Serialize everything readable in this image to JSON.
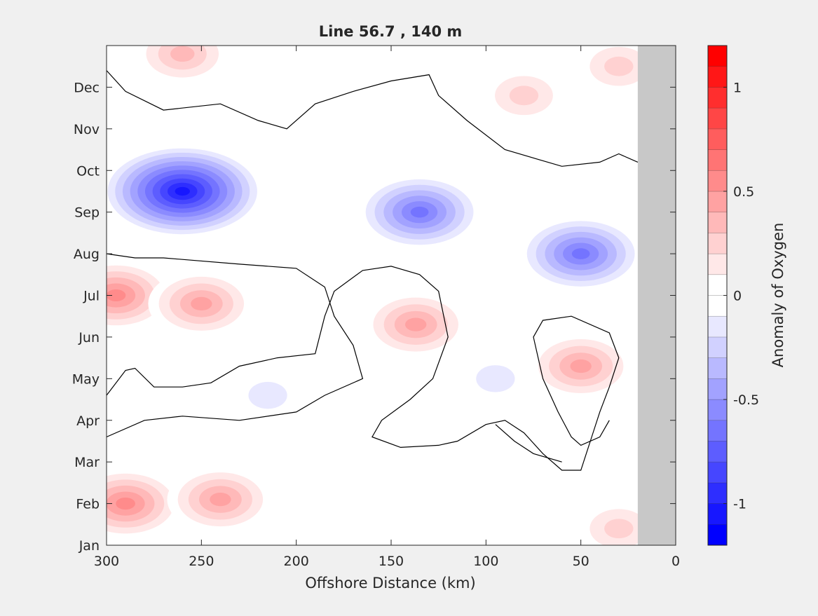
{
  "chart_data": {
    "type": "heatmap",
    "title": "Line 56.7 , 140 m",
    "xlabel": "Offshore Distance (km)",
    "ylabel": "",
    "x_reversed": true,
    "xlim": [
      300,
      0
    ],
    "x_ticks": [
      300,
      250,
      200,
      150,
      100,
      50,
      0
    ],
    "y_ticks": [
      {
        "label": "Jan",
        "month": 1
      },
      {
        "label": "Feb",
        "month": 2
      },
      {
        "label": "Mar",
        "month": 3
      },
      {
        "label": "Apr",
        "month": 4
      },
      {
        "label": "May",
        "month": 5
      },
      {
        "label": "Jun",
        "month": 6
      },
      {
        "label": "Jul",
        "month": 7
      },
      {
        "label": "Aug",
        "month": 8
      },
      {
        "label": "Sep",
        "month": 9
      },
      {
        "label": "Oct",
        "month": 10
      },
      {
        "label": "Nov",
        "month": 11
      },
      {
        "label": "Dec",
        "month": 12
      }
    ],
    "ylim": [
      1,
      13
    ],
    "no_data_region_km": [
      0,
      20
    ],
    "contour_level": 0,
    "colorbar": {
      "label": "Anomaly of Oxygen",
      "clim": [
        -1.2,
        1.2
      ],
      "ticks": [
        -1,
        -0.5,
        0,
        0.5,
        1
      ],
      "tick_labels": [
        "-1",
        "-0.5",
        "0",
        "0.5",
        "1"
      ],
      "levels": 24
    },
    "anomaly_features": [
      {
        "sign": "negative",
        "x_km": 260,
        "month": 9.5,
        "value": -1.1
      },
      {
        "sign": "negative",
        "x_km": 135,
        "month": 9.0,
        "value": -0.7
      },
      {
        "sign": "negative",
        "x_km": 50,
        "month": 8.0,
        "value": -0.7
      },
      {
        "sign": "negative",
        "x_km": 215,
        "month": 4.6,
        "value": -0.2
      },
      {
        "sign": "negative",
        "x_km": 95,
        "month": 5.0,
        "value": -0.2
      },
      {
        "sign": "negative",
        "x_km": 50,
        "month": 3.0,
        "value": -0.1
      },
      {
        "sign": "positive",
        "x_km": 295,
        "month": 7.0,
        "value": 0.6
      },
      {
        "sign": "positive",
        "x_km": 250,
        "month": 6.8,
        "value": 0.5
      },
      {
        "sign": "positive",
        "x_km": 137,
        "month": 6.3,
        "value": 0.5
      },
      {
        "sign": "positive",
        "x_km": 50,
        "month": 5.3,
        "value": 0.5
      },
      {
        "sign": "positive",
        "x_km": 290,
        "month": 2.0,
        "value": 0.6
      },
      {
        "sign": "positive",
        "x_km": 240,
        "month": 2.1,
        "value": 0.5
      },
      {
        "sign": "positive",
        "x_km": 260,
        "month": 12.8,
        "value": 0.4
      },
      {
        "sign": "positive",
        "x_km": 80,
        "month": 11.8,
        "value": 0.3
      },
      {
        "sign": "positive",
        "x_km": 30,
        "month": 12.5,
        "value": 0.3
      },
      {
        "sign": "positive",
        "x_km": 30,
        "month": 1.4,
        "value": 0.3
      }
    ]
  }
}
